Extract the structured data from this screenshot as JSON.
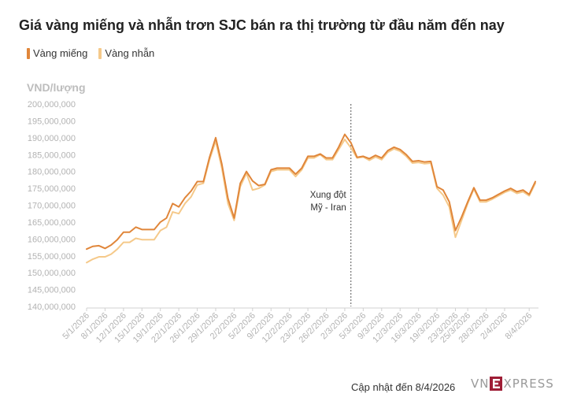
{
  "chart_data": {
    "type": "line",
    "title": "Giá vàng miếng và nhẫn trơn SJC bán ra thị trường từ đầu năm đến nay",
    "ylabel": "VND/lượng",
    "xlabel": "",
    "ylim": [
      140000000,
      200000000
    ],
    "yticks": [
      "200,000,000",
      "195,000,000",
      "190,000,000",
      "185,000,000",
      "180,000,000",
      "175,000,000",
      "170,000,000",
      "165,000,000",
      "160,000,000",
      "155,000,000",
      "150,000,000",
      "145,000,000",
      "140,000,000"
    ],
    "ytick_values": [
      200000000,
      195000000,
      190000000,
      185000000,
      180000000,
      175000000,
      170000000,
      165000000,
      160000000,
      155000000,
      150000000,
      145000000,
      140000000
    ],
    "x_tick_labels": [
      "5/1/2026",
      "8/1/2026",
      "12/1/2026",
      "15/1/2026",
      "19/1/2026",
      "22/1/2026",
      "26/1/2026",
      "29/1/2026",
      "2/2/2026",
      "5/2/2026",
      "9/2/2026",
      "12/2/2026",
      "23/2/2026",
      "26/2/2026",
      "2/3/2026",
      "5/3/2026",
      "9/3/2026",
      "12/3/2026",
      "16/3/2026",
      "19/3/2026",
      "23/3/2026",
      "25/3/2026",
      "28/3/2026",
      "2/4/2026",
      "8/4/2026"
    ],
    "x_tick_index": [
      0,
      3,
      6,
      9,
      12,
      15,
      18,
      21,
      24,
      27,
      30,
      33,
      36,
      39,
      42,
      45,
      48,
      51,
      54,
      57,
      60,
      62,
      65,
      68,
      72
    ],
    "series": [
      {
        "name": "Vàng miếng",
        "color": "#e0863a",
        "values": [
          157000000,
          157800000,
          158000000,
          157200000,
          158200000,
          159800000,
          162000000,
          162000000,
          163500000,
          162800000,
          162800000,
          162800000,
          165000000,
          166200000,
          170500000,
          169500000,
          172200000,
          174200000,
          177000000,
          177000000,
          184200000,
          190000000,
          182200000,
          172000000,
          166200000,
          176500000,
          180000000,
          177200000,
          175800000,
          176200000,
          180500000,
          181000000,
          181000000,
          181000000,
          179200000,
          181000000,
          184500000,
          184500000,
          185200000,
          184000000,
          184000000,
          187200000,
          191000000,
          188500000,
          184200000,
          184500000,
          183800000,
          184800000,
          184000000,
          186200000,
          187200000,
          186500000,
          185000000,
          183000000,
          183200000,
          182800000,
          183000000,
          175500000,
          174500000,
          171000000,
          162500000,
          166500000,
          171000000,
          175200000,
          171500000,
          171500000,
          172200000,
          173200000,
          174200000,
          175000000,
          174000000,
          174500000,
          173200000,
          177000000
        ]
      },
      {
        "name": "Vàng nhẫn",
        "color": "#f5c98a",
        "values": [
          153000000,
          154000000,
          154700000,
          154700000,
          155500000,
          157000000,
          159000000,
          159000000,
          160200000,
          159800000,
          159800000,
          159800000,
          162500000,
          163500000,
          168000000,
          167500000,
          170500000,
          172500000,
          176000000,
          176500000,
          183500000,
          189000000,
          181000000,
          170500000,
          165500000,
          175500000,
          179500000,
          174500000,
          175000000,
          176000000,
          180000000,
          180500000,
          180500000,
          180500000,
          178500000,
          180500000,
          184000000,
          184000000,
          185000000,
          183500000,
          183500000,
          186500000,
          189500000,
          187000000,
          184000000,
          184300000,
          183300000,
          184300000,
          183500000,
          185700000,
          186700000,
          186000000,
          184500000,
          182500000,
          182700000,
          182300000,
          182500000,
          175000000,
          173000000,
          169500000,
          160500000,
          165500000,
          170500000,
          174800000,
          171000000,
          171000000,
          171800000,
          172800000,
          173800000,
          174500000,
          173500000,
          174000000,
          172800000,
          176500000
        ]
      }
    ],
    "annotation": {
      "line1": "Xung đột",
      "line2": "Mỹ - Iran",
      "at_index": 43
    }
  },
  "footer": {
    "updated": "Cập nhật đến 8/4/2026"
  },
  "brand": {
    "left": "VN",
    "right": "XPRESS",
    "colors": {
      "text": "#9a9a9a",
      "box": "#9f1e36"
    }
  }
}
